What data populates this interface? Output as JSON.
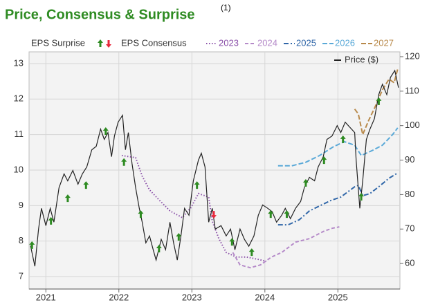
{
  "chart_data": {
    "type": "line",
    "title": "Price, Consensus & Surprise",
    "title_note": "(1)",
    "title_color": "#2e8b22",
    "xlim": [
      2020.77,
      2025.85
    ],
    "xticks": [
      2021,
      2022,
      2023,
      2024,
      2025
    ],
    "ylim": [
      6.65,
      13.33
    ],
    "yticks": [
      7,
      8,
      9,
      10,
      11,
      12,
      13
    ],
    "y2lim": [
      52.6,
      121.4
    ],
    "y2ticks": [
      60,
      70,
      80,
      90,
      100,
      110,
      120
    ],
    "grid": true,
    "consensus_label": "EPS Consensus",
    "surprise": {
      "name": "EPS Surprise",
      "up_color": "#2e8b22",
      "down_color": "#e8283c",
      "x": [
        2020.81,
        2021.07,
        2021.3,
        2021.55,
        2021.82,
        2022.07,
        2022.3,
        2022.55,
        2022.82,
        2023.07,
        2023.3,
        2023.55,
        2023.82,
        2024.08,
        2024.3,
        2024.56,
        2024.81,
        2025.07,
        2025.32,
        2025.56
      ],
      "values": [
        7.88,
        8.56,
        9.2,
        9.57,
        11.09,
        10.22,
        8.75,
        7.78,
        8.11,
        9.57,
        8.75,
        7.97,
        7.68,
        8.75,
        8.75,
        9.63,
        10.27,
        10.86,
        9.24,
        11.93
      ],
      "directions": [
        "up",
        "up",
        "up",
        "up",
        "up",
        "up",
        "up",
        "up",
        "up",
        "up",
        "down",
        "up",
        "up",
        "up",
        "up",
        "up",
        "up",
        "up",
        "up",
        "up"
      ]
    },
    "series": [
      {
        "name": "2023",
        "color": "#8a4fa8",
        "dash": "1.5,2.5",
        "x": [
          2022.04,
          2022.23,
          2022.32,
          2022.42,
          2022.56,
          2022.7,
          2022.87,
          2022.99,
          2023.09,
          2023.23,
          2023.28,
          2023.37,
          2023.47,
          2023.61,
          2023.75,
          2023.9,
          2024.02
        ],
        "values": [
          10.41,
          10.35,
          9.83,
          9.44,
          9.14,
          8.85,
          8.66,
          8.95,
          9.34,
          9.24,
          8.56,
          8.07,
          7.68,
          7.55,
          7.55,
          7.49,
          7.43
        ]
      },
      {
        "name": "2024",
        "color": "#b58ac9",
        "dash": "5,3",
        "x": [
          2023.56,
          2023.66,
          2023.8,
          2023.94,
          2024.09,
          2024.23,
          2024.42,
          2024.61,
          2024.8,
          2024.92,
          2025.02
        ],
        "values": [
          7.68,
          7.33,
          7.25,
          7.33,
          7.55,
          7.68,
          7.97,
          8.07,
          8.27,
          8.36,
          8.4
        ]
      },
      {
        "name": "2025",
        "color": "#2f66a8",
        "dash": "7,3,2,3",
        "x": [
          2024.18,
          2024.32,
          2024.47,
          2024.61,
          2024.75,
          2024.9,
          2025.04,
          2025.23,
          2025.28,
          2025.34,
          2025.44,
          2025.56,
          2025.7,
          2025.82
        ],
        "values": [
          8.46,
          8.46,
          8.6,
          8.85,
          8.99,
          9.14,
          9.24,
          9.53,
          9.57,
          9.28,
          9.34,
          9.53,
          9.77,
          9.92
        ]
      },
      {
        "name": "2026",
        "color": "#5aa9d8",
        "dash": "7,3",
        "x": [
          2024.18,
          2024.37,
          2024.56,
          2024.75,
          2024.94,
          2025.09,
          2025.23,
          2025.32,
          2025.47,
          2025.61,
          2025.75,
          2025.82
        ],
        "values": [
          10.12,
          10.12,
          10.22,
          10.41,
          10.66,
          10.8,
          10.7,
          10.41,
          10.55,
          10.7,
          11.0,
          11.19
        ]
      },
      {
        "name": "2027",
        "color": "#b8894a",
        "dash": "7,3",
        "x": [
          2025.23,
          2025.28,
          2025.34,
          2025.42,
          2025.51,
          2025.61,
          2025.7,
          2025.77,
          2025.82
        ],
        "values": [
          11.72,
          11.58,
          11.0,
          11.39,
          11.78,
          12.26,
          12.56,
          12.46,
          12.85
        ]
      },
      {
        "name": "Price ($)",
        "color": "#222222",
        "axis": "y2",
        "x": [
          2020.79,
          2020.85,
          2020.9,
          2020.94,
          2021.0,
          2021.06,
          2021.11,
          2021.18,
          2021.25,
          2021.3,
          2021.37,
          2021.44,
          2021.5,
          2021.56,
          2021.63,
          2021.69,
          2021.75,
          2021.8,
          2021.85,
          2021.9,
          2021.94,
          2021.99,
          2022.05,
          2022.09,
          2022.13,
          2022.18,
          2022.23,
          2022.28,
          2022.32,
          2022.37,
          2022.42,
          2022.47,
          2022.51,
          2022.58,
          2022.64,
          2022.7,
          2022.75,
          2022.8,
          2022.85,
          2022.9,
          2022.96,
          2023.02,
          2023.09,
          2023.13,
          2023.18,
          2023.23,
          2023.28,
          2023.32,
          2023.4,
          2023.47,
          2023.53,
          2023.59,
          2023.66,
          2023.72,
          2023.78,
          2023.85,
          2023.91,
          2023.97,
          2024.04,
          2024.1,
          2024.16,
          2024.23,
          2024.28,
          2024.35,
          2024.42,
          2024.49,
          2024.54,
          2024.61,
          2024.68,
          2024.73,
          2024.8,
          2024.85,
          2024.92,
          2024.99,
          2025.04,
          2025.1,
          2025.23,
          2025.25,
          2025.3,
          2025.34,
          2025.39,
          2025.44,
          2025.5,
          2025.56,
          2025.61,
          2025.67,
          2025.72,
          2025.78,
          2025.83
        ],
        "values": [
          65.2,
          59.2,
          70,
          76,
          71,
          76,
          72,
          82,
          86,
          84,
          87,
          83,
          86,
          88,
          93,
          94,
          99,
          96,
          98,
          91,
          97,
          101,
          103,
          93,
          98,
          89,
          82,
          76,
          72,
          66,
          68,
          64,
          61,
          67,
          64,
          72,
          66,
          61,
          68,
          76,
          74,
          84,
          90,
          92,
          88,
          72,
          76,
          70,
          71,
          68,
          70,
          64,
          70,
          67,
          65,
          68,
          74,
          77,
          76,
          75,
          72,
          74,
          76,
          73,
          76,
          78,
          82,
          85,
          84,
          88,
          91,
          96,
          97,
          100,
          98,
          101,
          98,
          90,
          76,
          84,
          96,
          99,
          102,
          109,
          112,
          109,
          114,
          116,
          111
        ]
      }
    ]
  }
}
